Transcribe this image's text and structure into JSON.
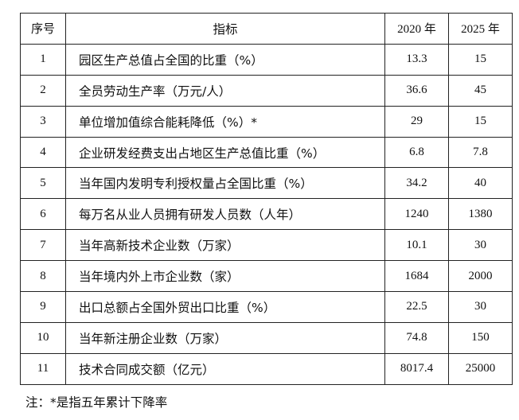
{
  "table": {
    "headers": {
      "num": "序号",
      "indicator": "指标",
      "y2020": "2020 年",
      "y2025": "2025 年"
    },
    "rows": [
      {
        "num": "1",
        "indicator": "园区生产总值占全国的比重（%）",
        "y2020": "13.3",
        "y2025": "15"
      },
      {
        "num": "2",
        "indicator": "全员劳动生产率（万元/人）",
        "y2020": "36.6",
        "y2025": "45"
      },
      {
        "num": "3",
        "indicator": "单位增加值综合能耗降低（%）*",
        "y2020": "29",
        "y2025": "15"
      },
      {
        "num": "4",
        "indicator": "企业研发经费支出占地区生产总值比重（%）",
        "y2020": "6.8",
        "y2025": "7.8"
      },
      {
        "num": "5",
        "indicator": "当年国内发明专利授权量占全国比重（%）",
        "y2020": "34.2",
        "y2025": "40"
      },
      {
        "num": "6",
        "indicator": "每万名从业人员拥有研发人员数（人年）",
        "y2020": "1240",
        "y2025": "1380"
      },
      {
        "num": "7",
        "indicator": "当年高新技术企业数（万家）",
        "y2020": "10.1",
        "y2025": "30"
      },
      {
        "num": "8",
        "indicator": "当年境内外上市企业数（家）",
        "y2020": "1684",
        "y2025": "2000"
      },
      {
        "num": "9",
        "indicator": "出口总额占全国外贸出口比重（%）",
        "y2020": "22.5",
        "y2025": "30"
      },
      {
        "num": "10",
        "indicator": "当年新注册企业数（万家）",
        "y2020": "74.8",
        "y2025": "150"
      },
      {
        "num": "11",
        "indicator": "技术合同成交额（亿元）",
        "y2020": "8017.4",
        "y2025": "25000"
      }
    ]
  },
  "note": "注：*是指五年累计下降率"
}
